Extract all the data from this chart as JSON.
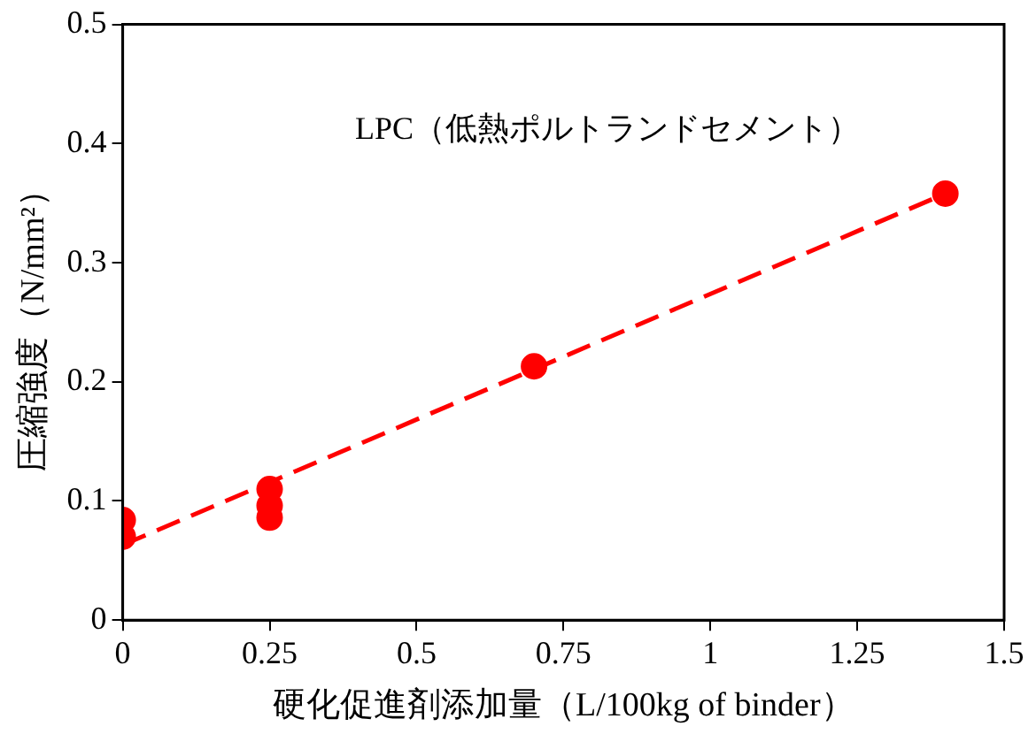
{
  "chart_data": {
    "type": "scatter",
    "xlabel": "硬化促進剤添加量（L/100kg of binder）",
    "ylabel": "圧縮強度（N/mm²）",
    "annotations": [
      "LPC（低熱ポルトランドセメント）"
    ],
    "xlim": [
      0,
      1.5
    ],
    "xticks": [
      0,
      0.25,
      0.5,
      0.75,
      1,
      1.25,
      1.5
    ],
    "ylim": [
      0,
      0.5
    ],
    "yticks": [
      0,
      0.1,
      0.2,
      0.3,
      0.4,
      0.5
    ],
    "grid": false,
    "legend": false,
    "series": [
      {
        "color": "#ff0000",
        "marker": "circle",
        "x": [
          0,
          0,
          0.25,
          0.25,
          0.25,
          0.7,
          1.4
        ],
        "values": [
          0.084,
          0.07,
          0.11,
          0.096,
          0.086,
          0.213,
          0.358
        ]
      },
      {
        "type": "line",
        "color": "#ff0000",
        "marker": "none",
        "line_style": "dashed",
        "x": [
          0,
          1.4
        ],
        "values": [
          0.063,
          0.358
        ]
      }
    ]
  }
}
